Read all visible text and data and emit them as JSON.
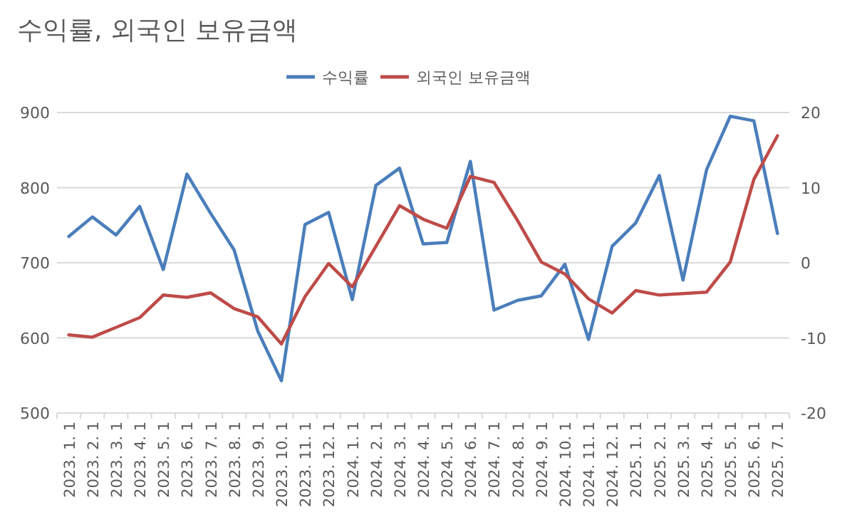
{
  "chart_data": {
    "type": "line",
    "title": "수익률, 외국인 보유금액",
    "categories": [
      "2023. 1. 1",
      "2023. 2. 1",
      "2023. 3. 1",
      "2023. 4. 1",
      "2023. 5. 1",
      "2023. 6. 1",
      "2023. 7. 1",
      "2023. 8. 1",
      "2023. 9. 1",
      "2023. 10. 1",
      "2023. 11. 1",
      "2023. 12. 1",
      "2024. 1. 1",
      "2024. 2. 1",
      "2024. 3. 1",
      "2024. 4. 1",
      "2024. 5. 1",
      "2024. 6. 1",
      "2024. 7. 1",
      "2024. 8. 1",
      "2024. 9. 1",
      "2024. 10. 1",
      "2024. 11. 1",
      "2024. 12. 1",
      "2025. 1. 1",
      "2025. 2. 1",
      "2025. 3. 1",
      "2025. 4. 1",
      "2025. 5. 1",
      "2025. 6. 1",
      "2025. 7. 1"
    ],
    "series": [
      {
        "name": "수익률",
        "color": "#4a7ebb",
        "axis": "y2",
        "values": [
          3.5,
          6.1,
          3.7,
          7.5,
          -0.9,
          11.8,
          6.6,
          1.7,
          -9.1,
          -15.7,
          5.1,
          6.7,
          -4.9,
          10.3,
          12.6,
          2.5,
          2.7,
          13.5,
          -6.3,
          -5.0,
          -4.4,
          -0.2,
          -10.2,
          2.2,
          5.3,
          11.6,
          -2.3,
          12.4,
          19.5,
          18.9,
          3.9
        ]
      },
      {
        "name": "외국인 보유금액",
        "color": "#be4b48",
        "values": [
          604,
          601,
          614,
          627,
          657,
          654,
          660,
          639,
          628,
          592,
          655,
          699,
          668,
          722,
          776,
          758,
          746,
          815,
          807,
          756,
          701,
          685,
          652,
          633,
          663,
          657,
          659,
          661,
          701,
          811,
          869
        ]
      }
    ],
    "ylim": [
      500,
      900
    ],
    "yticks": [
      500,
      600,
      700,
      800,
      900
    ],
    "y2lim": [
      -20,
      20
    ],
    "y2ticks": [
      -20,
      -10,
      0,
      10,
      20
    ],
    "grid": "y",
    "legend": "top",
    "marker": "none",
    "line_style": "solid"
  }
}
